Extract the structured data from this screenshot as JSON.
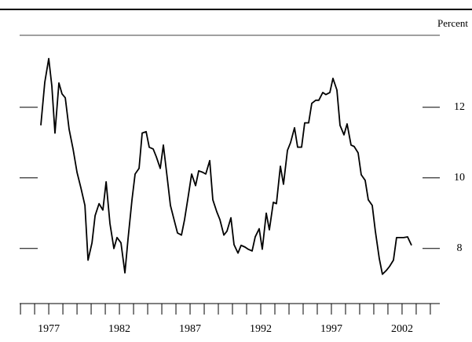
{
  "chart_data": {
    "type": "line",
    "y_axis_label": "Percent",
    "xlim": [
      1974.94,
      2004.67
    ],
    "ylim": [
      6.44,
      14.04
    ],
    "xticks": [
      1977,
      1982,
      1987,
      1992,
      1997,
      2002
    ],
    "xminorticks": [
      1975,
      1976,
      1977,
      1978,
      1979,
      1980,
      1981,
      1982,
      1983,
      1984,
      1985,
      1986,
      1987,
      1988,
      1989,
      1990,
      1991,
      1992,
      1993,
      1994,
      1995,
      1996,
      1997,
      1998,
      1999,
      2000,
      2001,
      2002,
      2003,
      2004
    ],
    "yticks": [
      8,
      10,
      12
    ],
    "color": "#000000",
    "x": [
      1976.44,
      1976.72,
      1977,
      1977.22,
      1977.44,
      1977.72,
      1977.94,
      1978.17,
      1978.44,
      1978.72,
      1979,
      1979.28,
      1979.56,
      1979.78,
      1980.06,
      1980.28,
      1980.56,
      1980.83,
      1981.06,
      1981.33,
      1981.61,
      1981.83,
      1982.11,
      1982.39,
      1982.61,
      1982.89,
      1983.11,
      1983.39,
      1983.61,
      1983.89,
      1984.11,
      1984.39,
      1984.61,
      1984.89,
      1985.11,
      1985.39,
      1985.61,
      1985.89,
      1986.11,
      1986.39,
      1986.61,
      1986.89,
      1987.11,
      1987.39,
      1987.61,
      1987.89,
      1988.11,
      1988.39,
      1988.61,
      1988.89,
      1989.11,
      1989.39,
      1989.61,
      1989.89,
      1990.11,
      1990.39,
      1990.61,
      1990.89,
      1991.11,
      1991.39,
      1991.61,
      1991.89,
      1992.11,
      1992.39,
      1992.61,
      1992.89,
      1993.11,
      1993.39,
      1993.61,
      1993.89,
      1994.11,
      1994.39,
      1994.61,
      1994.89,
      1995.11,
      1995.39,
      1995.61,
      1995.89,
      1996.11,
      1996.39,
      1996.61,
      1996.89,
      1997.11,
      1997.39,
      1997.61,
      1997.89,
      1998.11,
      1998.39,
      1998.61,
      1998.89,
      1999.11,
      1999.39,
      1999.61,
      1999.89,
      2000.11,
      2000.39,
      2000.61,
      2000.89,
      2001.11,
      2001.39,
      2001.61,
      2001.89,
      2002.11,
      2002.39,
      2002.67
    ],
    "values": [
      11.49,
      12.71,
      13.38,
      12.6,
      11.27,
      12.69,
      12.38,
      12.27,
      11.38,
      10.82,
      10.16,
      9.71,
      9.22,
      7.67,
      8.16,
      8.93,
      9.27,
      9.09,
      9.89,
      8.71,
      8.0,
      8.31,
      8.16,
      7.31,
      8.27,
      9.38,
      10.11,
      10.27,
      11.27,
      11.31,
      10.87,
      10.82,
      10.6,
      10.27,
      10.93,
      9.98,
      9.22,
      8.78,
      8.44,
      8.38,
      8.82,
      9.53,
      10.11,
      9.78,
      10.2,
      10.16,
      10.11,
      10.49,
      9.38,
      9.04,
      8.82,
      8.38,
      8.49,
      8.87,
      8.11,
      7.87,
      8.09,
      8.04,
      7.98,
      7.93,
      8.33,
      8.56,
      7.98,
      9.0,
      8.53,
      9.31,
      9.27,
      10.33,
      9.82,
      10.78,
      11.0,
      11.42,
      10.87,
      10.87,
      11.56,
      11.56,
      12.11,
      12.2,
      12.2,
      12.42,
      12.36,
      12.42,
      12.82,
      12.49,
      11.49,
      11.22,
      11.53,
      10.93,
      10.89,
      10.71,
      10.09,
      9.93,
      9.38,
      9.22,
      8.49,
      7.71,
      7.27,
      7.38,
      7.49,
      7.67,
      8.31,
      8.31,
      8.31,
      8.33,
      8.09
    ]
  }
}
